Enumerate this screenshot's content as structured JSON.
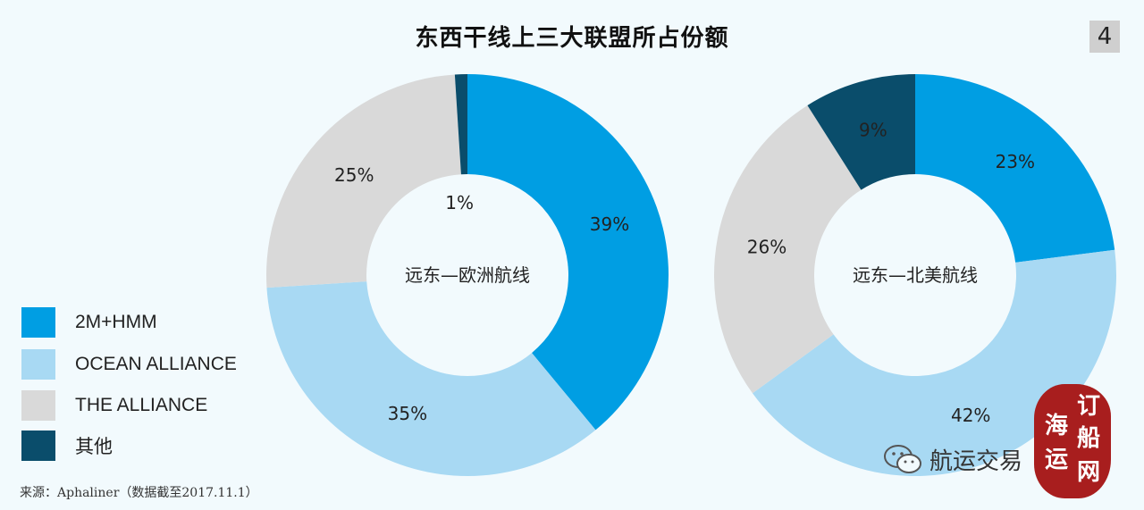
{
  "slide": {
    "title": "东西干线上三大联盟所占份额",
    "page_number": "4",
    "source": "来源：Aphaliner（数据截至2017.11.1）",
    "watermark_text": "航运交易",
    "seal_text": "订船网海运"
  },
  "legend": [
    {
      "label": "2M+HMM",
      "color": "#009ee3"
    },
    {
      "label": "OCEAN ALLIANCE",
      "color": "#a8d9f3"
    },
    {
      "label": "THE ALLIANCE",
      "color": "#d9d9d9"
    },
    {
      "label": "其他",
      "color": "#0a4d6b"
    }
  ],
  "chart_data": [
    {
      "type": "pie",
      "donut": true,
      "title": "远东—欧洲航线",
      "categories": [
        "2M+HMM",
        "OCEAN ALLIANCE",
        "THE ALLIANCE",
        "其他"
      ],
      "values": [
        39,
        35,
        25,
        1
      ],
      "labels": [
        "39%",
        "35%",
        "25%",
        "1%"
      ],
      "colors": [
        "#009ee3",
        "#a8d9f3",
        "#d9d9d9",
        "#0a4d6b"
      ],
      "legend": "left"
    },
    {
      "type": "pie",
      "donut": true,
      "title": "远东—北美航线",
      "categories": [
        "2M+HMM",
        "OCEAN ALLIANCE",
        "THE ALLIANCE",
        "其他"
      ],
      "values": [
        23,
        42,
        26,
        9
      ],
      "labels": [
        "23%",
        "42%",
        "26%",
        "9%"
      ],
      "colors": [
        "#009ee3",
        "#a8d9f3",
        "#d9d9d9",
        "#0a4d6b"
      ],
      "legend": "left"
    }
  ]
}
